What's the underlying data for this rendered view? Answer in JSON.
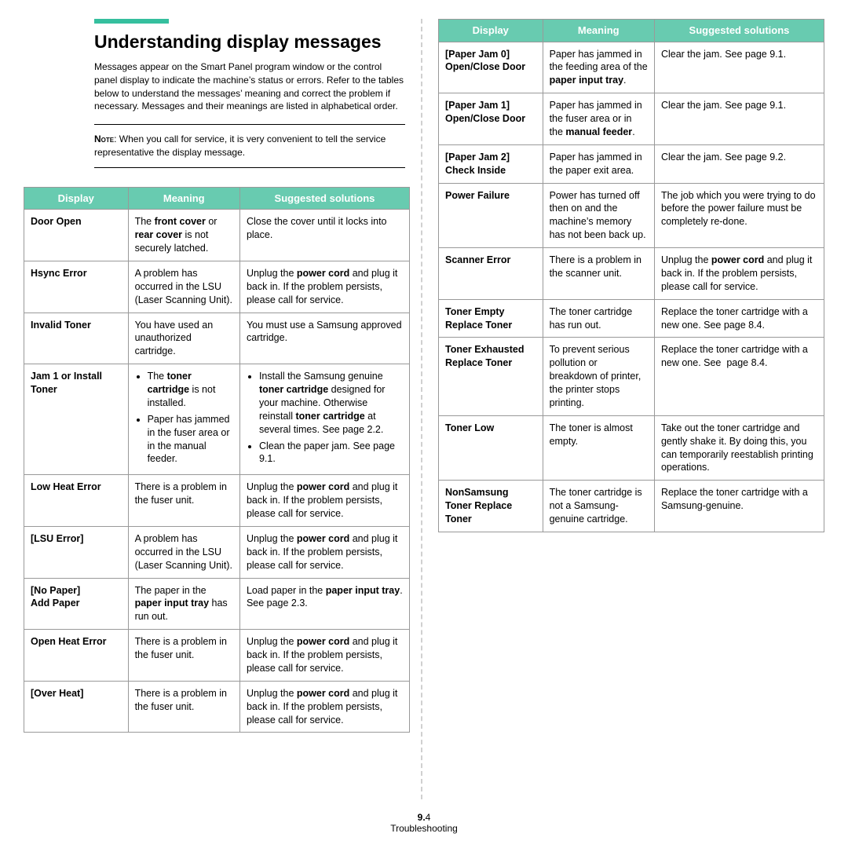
{
  "accent_color": "#35bf9e",
  "heading": "Understanding display messages",
  "intro": "Messages appear on the Smart Panel program window or the control panel display to indicate the machine’s status or errors. Refer to the tables below to understand the messages’ meaning and correct the problem if necessary. Messages and their meanings are listed in alphabetical order.",
  "note_label": "Note",
  "note_text": ": When you call for service, it is very convenient to tell the service representative the display message.",
  "headers": {
    "display": "Display",
    "meaning": "Meaning",
    "solutions": "Suggested solutions"
  },
  "left_rows": [
    {
      "d": "Door Open",
      "m": "The <b>front cover</b> or <b>rear cover</b> is not securely latched.",
      "s": "Close the cover until it locks into place."
    },
    {
      "d": "Hsync Error",
      "m": "A problem has occurred in the LSU (Laser Scanning Unit).",
      "s": "Unplug the <b>power cord</b> and plug it back in. If the problem persists, please call for service."
    },
    {
      "d": "Invalid Toner",
      "m": "You have used an unauthorized cartridge.",
      "s": "You must use a Samsung approved cartridge."
    },
    {
      "d": "Jam 1 or Install Toner",
      "m": "<ul class='tight'><li>The <b>toner cartridge</b> is not installed.</li><li>Paper has jammed in the fuser area or in the manual feeder.</li></ul>",
      "s": "<ul class='tight'><li>Install the Samsung genuine <b>toner cartridge</b> designed for your machine. Otherwise reinstall <b>toner cartridge</b> at several times. See page 2.2.</li><li>Clean the paper jam. See page 9.1.</li></ul>"
    },
    {
      "d": "Low Heat Error",
      "m": "There is a problem in the fuser unit.",
      "s": "Unplug the <b>power cord</b> and plug it back in. If the problem persists, please call for service."
    },
    {
      "d": "[LSU Error]",
      "m": "A problem has occurred in the LSU (Laser Scanning Unit).",
      "s": "Unplug the <b>power cord</b> and plug it back in. If the problem persists, please call for service."
    },
    {
      "d": "[No Paper]<br>Add Paper",
      "m": "The paper in the <b>paper input tray</b> has run out.",
      "s": "Load paper in the <b>paper input tray</b>. See page 2.3."
    },
    {
      "d": "Open Heat Error",
      "m": "There is a problem in the fuser unit.",
      "s": "Unplug the <b>power cord</b> and plug it back in. If the problem persists, please call for service."
    },
    {
      "d": "[Over Heat]",
      "m": "There is a problem in the fuser unit.",
      "s": "Unplug the <b>power cord</b> and plug it back in. If the problem persists, please call for service."
    }
  ],
  "right_rows": [
    {
      "d": "[Paper Jam 0]<br>Open/Close Door",
      "m": "Paper has jammed in the feeding area of the <b>paper input tray</b>.",
      "s": "Clear the jam. See page 9.1."
    },
    {
      "d": "[Paper Jam 1]<br>Open/Close Door",
      "m": "Paper has jammed in the fuser area or in the <b>manual feeder</b>.",
      "s": "Clear the jam. See page 9.1."
    },
    {
      "d": "[Paper Jam 2]<br>Check Inside",
      "m": "Paper has jammed in the paper exit area.",
      "s": "Clear the jam. See page 9.2."
    },
    {
      "d": "Power Failure",
      "m": "Power has turned off then on and the machine’s memory has not been back up.",
      "s": "The job which you were trying to do before the power failure must be completely re-done."
    },
    {
      "d": "Scanner Error",
      "m": "There is a problem in the scanner unit.",
      "s": "Unplug the <b>power cord</b> and plug it back in. If the problem persists, please call for service."
    },
    {
      "d": "Toner Empty<br>Replace Toner",
      "m": "The toner cartridge has run out.",
      "s": "Replace the toner cartridge with a new one. See page 8.4."
    },
    {
      "d": "Toner Exhausted<br>Replace Toner",
      "m": "To prevent serious pollution or breakdown of printer, the printer stops printing.",
      "s": "Replace the toner cartridge with a new one. See&nbsp; page 8.4."
    },
    {
      "d": "Toner Low",
      "m": "The toner is almost empty.",
      "s": "Take out the toner cartridge and gently shake it. By doing this, you can temporarily reestablish printing operations."
    },
    {
      "d": "NonSamsung Toner Replace Toner",
      "m": "The toner cartridge is not a Samsung-genuine cartridge.",
      "s": "Replace the toner cartridge with a Samsung-genuine."
    }
  ],
  "page_chapter": "9.",
  "page_num": "4",
  "footer_label": "Troubleshooting"
}
